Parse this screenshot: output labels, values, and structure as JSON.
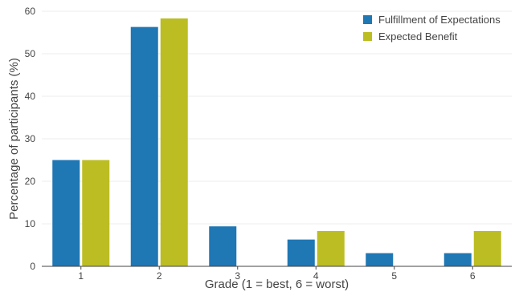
{
  "chart_data": {
    "type": "bar",
    "categories": [
      "1",
      "2",
      "3",
      "4",
      "5",
      "6"
    ],
    "series": [
      {
        "name": "Fulfillment of Expectations",
        "color": "#1f77b4",
        "values": [
          25,
          56.3,
          9.4,
          6.3,
          3.1,
          3.1
        ]
      },
      {
        "name": "Expected Benefit",
        "color": "#bcbd22",
        "values": [
          25,
          58.3,
          0,
          8.3,
          0,
          8.3
        ]
      }
    ],
    "yticks": [
      0,
      10,
      20,
      30,
      40,
      50,
      60
    ],
    "ylim": [
      0,
      60
    ],
    "xlabel": "Grade (1 = best, 6 = worst)",
    "ylabel": "Percentage of participants (%)",
    "grid": true,
    "legend_position": "top-right"
  }
}
